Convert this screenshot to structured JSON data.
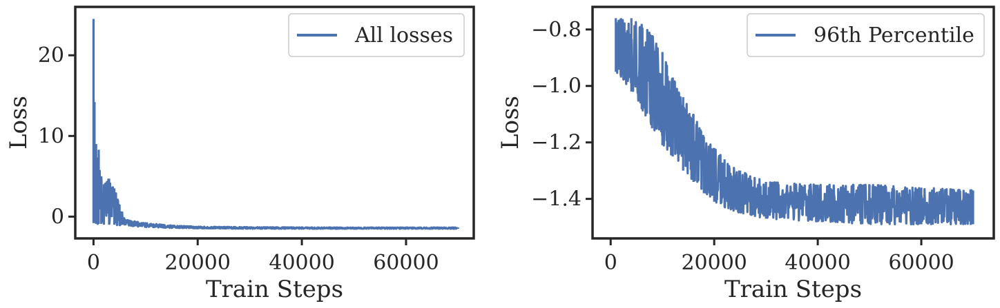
{
  "figure": {
    "line_color": "#4c72b0",
    "axis_color": "#262626"
  },
  "chart_data": [
    {
      "type": "line",
      "xlabel": "Train Steps",
      "ylabel": "Loss",
      "xlim": [
        -3500,
        73000
      ],
      "ylim": [
        -2.7,
        26
      ],
      "xticks": [
        0,
        20000,
        40000,
        60000
      ],
      "xtick_labels": [
        "0",
        "20000",
        "40000",
        "60000"
      ],
      "yticks": [
        0,
        10,
        20
      ],
      "ytick_labels": [
        "0",
        "10",
        "20"
      ],
      "grid": false,
      "legend": "top-right",
      "series": [
        {
          "name": "All losses",
          "color": "#4c72b0",
          "x_range": [
            0,
            70000
          ],
          "band": [
            {
              "x": 0,
              "low": -0.8,
              "high": 24.5
            },
            {
              "x": 200,
              "low": -0.8,
              "high": 14.2
            },
            {
              "x": 500,
              "low": -0.9,
              "high": 9.0
            },
            {
              "x": 1000,
              "low": -0.9,
              "high": 8.3
            },
            {
              "x": 1500,
              "low": -0.9,
              "high": 5.0
            },
            {
              "x": 2000,
              "low": -1.0,
              "high": 4.0
            },
            {
              "x": 3000,
              "low": -1.0,
              "high": 4.7
            },
            {
              "x": 4000,
              "low": -1.0,
              "high": 3.5
            },
            {
              "x": 5000,
              "low": -1.1,
              "high": 1.5
            },
            {
              "x": 6000,
              "low": -1.1,
              "high": -0.3
            },
            {
              "x": 8000,
              "low": -1.2,
              "high": -0.6
            },
            {
              "x": 10000,
              "low": -1.3,
              "high": -0.8
            },
            {
              "x": 15000,
              "low": -1.4,
              "high": -1.1
            },
            {
              "x": 20000,
              "low": -1.45,
              "high": -1.25
            },
            {
              "x": 30000,
              "low": -1.5,
              "high": -1.3
            },
            {
              "x": 40000,
              "low": -1.5,
              "high": -1.33
            },
            {
              "x": 50000,
              "low": -1.5,
              "high": -1.35
            },
            {
              "x": 60000,
              "low": -1.5,
              "high": -1.35
            },
            {
              "x": 70000,
              "low": -1.5,
              "high": -1.35
            }
          ]
        }
      ]
    },
    {
      "type": "line",
      "xlabel": "Train Steps",
      "ylabel": "Loss",
      "xlim": [
        -3500,
        74000
      ],
      "ylim": [
        -1.54,
        -0.72
      ],
      "xticks": [
        0,
        20000,
        40000,
        60000
      ],
      "xtick_labels": [
        "0",
        "20000",
        "40000",
        "60000"
      ],
      "yticks": [
        -0.8,
        -1.0,
        -1.2,
        -1.4
      ],
      "ytick_labels": [
        "−0.8",
        "−1.0",
        "−1.2",
        "−1.4"
      ],
      "grid": false,
      "legend": "top-right",
      "series": [
        {
          "name": "96th Percentile",
          "color": "#4c72b0",
          "x_range": [
            1000,
            70000
          ],
          "band": [
            {
              "x": 1000,
              "low": -0.95,
              "high": -0.76
            },
            {
              "x": 2000,
              "low": -0.97,
              "high": -0.76
            },
            {
              "x": 4000,
              "low": -1.02,
              "high": -0.76
            },
            {
              "x": 6000,
              "low": -1.08,
              "high": -0.78
            },
            {
              "x": 8000,
              "low": -1.15,
              "high": -0.82
            },
            {
              "x": 10000,
              "low": -1.21,
              "high": -0.88
            },
            {
              "x": 12000,
              "low": -1.25,
              "high": -0.97
            },
            {
              "x": 14000,
              "low": -1.3,
              "high": -1.04
            },
            {
              "x": 16000,
              "low": -1.34,
              "high": -1.1
            },
            {
              "x": 18000,
              "low": -1.38,
              "high": -1.18
            },
            {
              "x": 20000,
              "low": -1.41,
              "high": -1.22
            },
            {
              "x": 22000,
              "low": -1.43,
              "high": -1.26
            },
            {
              "x": 25000,
              "low": -1.45,
              "high": -1.3
            },
            {
              "x": 30000,
              "low": -1.47,
              "high": -1.34
            },
            {
              "x": 40000,
              "low": -1.48,
              "high": -1.35
            },
            {
              "x": 50000,
              "low": -1.49,
              "high": -1.35
            },
            {
              "x": 60000,
              "low": -1.49,
              "high": -1.36
            },
            {
              "x": 70000,
              "low": -1.49,
              "high": -1.37
            }
          ]
        }
      ]
    }
  ]
}
